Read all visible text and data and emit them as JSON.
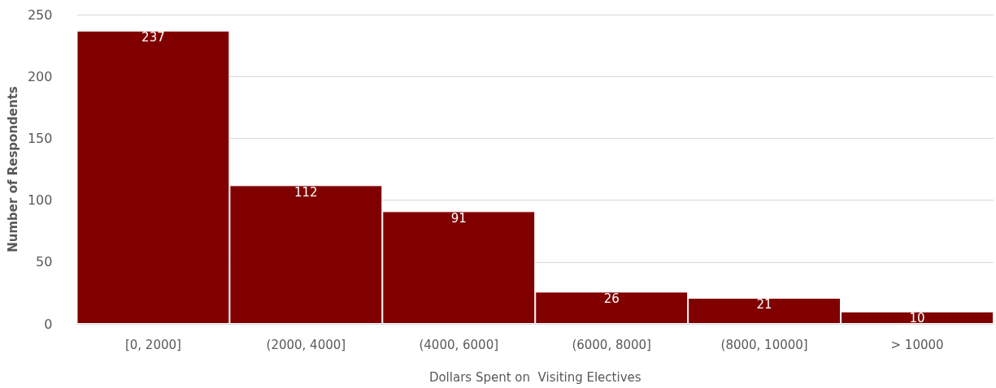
{
  "chart_data": {
    "type": "bar",
    "xlabel": "Dollars Spent on  Visiting Electives",
    "ylabel": "Number of Respondents",
    "categories": [
      "[0, 2000]",
      "(2000, 4000]",
      "(4000, 6000]",
      "(6000, 8000]",
      "(8000, 10000]",
      "> 10000"
    ],
    "values": [
      237,
      112,
      91,
      26,
      21,
      10
    ],
    "color": "#800000",
    "ylim": [
      0,
      250
    ],
    "yticks": [
      0,
      50,
      100,
      150,
      200,
      250
    ],
    "grid": "y",
    "data_labels": true
  }
}
